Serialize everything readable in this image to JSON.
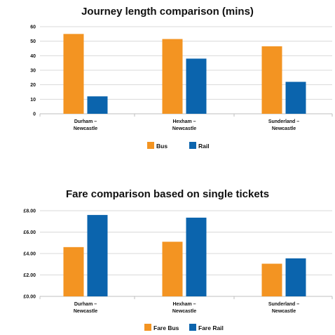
{
  "colors": {
    "primary": "#F39422",
    "secondary": "#0B64AD"
  },
  "chart_data": [
    {
      "type": "bar",
      "title": "Journey length comparison (mins)",
      "categories": [
        [
          "Durham –",
          "Newcastle"
        ],
        [
          "Hexham –",
          "Newcastle"
        ],
        [
          "Sunderland –",
          "Newcastle"
        ]
      ],
      "series": [
        {
          "name": "Bus",
          "values": [
            55,
            51.5,
            46.5
          ]
        },
        {
          "name": "Rail",
          "values": [
            12,
            38,
            22
          ]
        }
      ],
      "ylim": [
        0,
        60
      ],
      "yticks": [
        0,
        10,
        20,
        30,
        40,
        50,
        60
      ],
      "ytick_labels": [
        "0",
        "10",
        "20",
        "30",
        "40",
        "50",
        "60"
      ],
      "grid": true,
      "legend_position": "bottom"
    },
    {
      "type": "bar",
      "title": "Fare comparison based on single tickets",
      "categories": [
        [
          "Durham –",
          "Newcastle"
        ],
        [
          "Hexham –",
          "Newcastle"
        ],
        [
          "Sunderland –",
          "Newcastle"
        ]
      ],
      "series": [
        {
          "name": "Fare Bus",
          "values": [
            4.6,
            5.1,
            3.05
          ]
        },
        {
          "name": "Fare Rail",
          "values": [
            7.6,
            7.35,
            3.55
          ]
        }
      ],
      "ylim": [
        0,
        8
      ],
      "yticks": [
        0,
        2,
        4,
        6,
        8
      ],
      "ytick_labels": [
        "£0.00",
        "£2.00",
        "£4.00",
        "£6.00",
        "£8.00"
      ],
      "grid": true,
      "legend_position": "bottom"
    }
  ]
}
